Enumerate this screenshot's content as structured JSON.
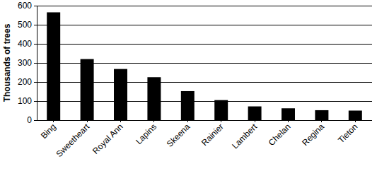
{
  "chart_data": {
    "type": "bar",
    "y_label": "Thousands of trees",
    "categories": [
      "Bing",
      "Sweetheart",
      "Royal Ann",
      "Lapins",
      "Skeena",
      "Rainier",
      "Lambert",
      "Chelan",
      "Regina",
      "Tieton"
    ],
    "values": [
      565,
      320,
      268,
      225,
      152,
      105,
      72,
      62,
      52,
      50
    ],
    "color": "#000000",
    "ylim": [
      0,
      600
    ],
    "yticks": [
      0,
      100,
      200,
      300,
      400,
      500,
      600
    ],
    "grid": true
  }
}
